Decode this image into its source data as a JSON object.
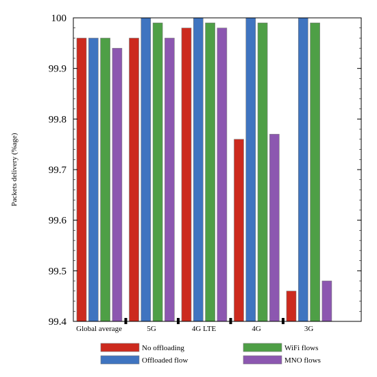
{
  "chart_data": {
    "type": "bar",
    "title": "",
    "xlabel": "",
    "ylabel": "Packets delivery (%age)",
    "ylim": [
      99.4,
      100
    ],
    "yticks": [
      "99.4",
      "99.5",
      "99.6",
      "99.7",
      "99.8",
      "99.9",
      "100"
    ],
    "grid": false,
    "legend_position": "bottom",
    "categories": [
      "Global average",
      "5G",
      "4G LTE",
      "4G",
      "3G"
    ],
    "series": [
      {
        "name": "No offloading",
        "color": "#cc2a1e",
        "values": [
          99.96,
          99.96,
          99.98,
          99.76,
          99.46
        ]
      },
      {
        "name": "Offloaded flow",
        "color": "#3f74c0",
        "values": [
          99.96,
          100.0,
          100.0,
          100.0,
          100.0
        ]
      },
      {
        "name": "WiFi flows",
        "color": "#4e9f46",
        "values": [
          99.96,
          99.99,
          99.99,
          99.99,
          99.99
        ]
      },
      {
        "name": "MNO flows",
        "color": "#8c57b0",
        "values": [
          99.94,
          99.96,
          99.98,
          99.77,
          99.48
        ]
      }
    ],
    "legend_order": [
      0,
      2,
      1,
      3
    ]
  }
}
